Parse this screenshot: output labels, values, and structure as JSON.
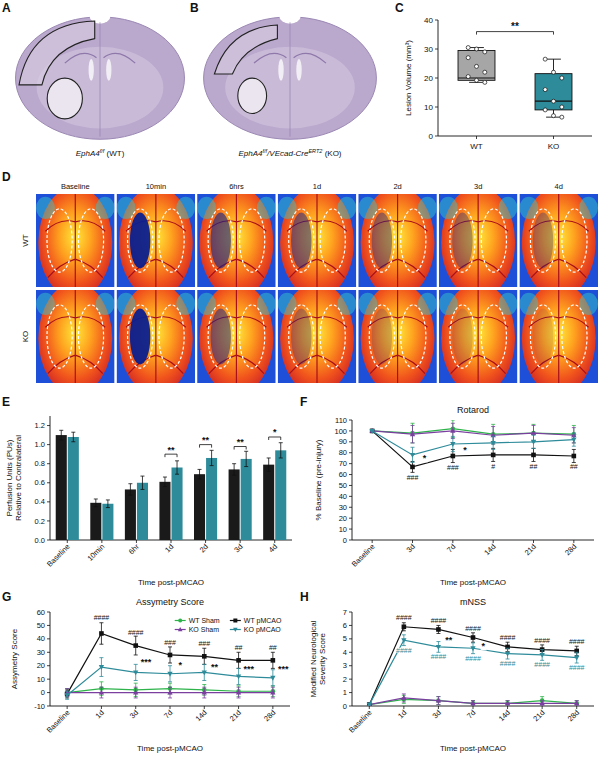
{
  "image_panels": [
    {
      "panel": "A",
      "caption": [
        {
          "text": "EphA4",
          "italic": true
        },
        {
          "text": "f/f",
          "italic": true,
          "sup": true
        },
        {
          "text": " (WT)"
        }
      ]
    },
    {
      "panel": "B",
      "caption": [
        {
          "text": "EphA4",
          "italic": true
        },
        {
          "text": "f/f",
          "italic": true,
          "sup": true
        },
        {
          "text": "/VEcad-Cre",
          "italic": true
        },
        {
          "text": "ERT2",
          "italic": true,
          "sup": true
        },
        {
          "text": " (KO)"
        }
      ]
    },
    {
      "panel": "D",
      "columns": [
        "Baseline",
        "10min",
        "6hrs",
        "1d",
        "2d",
        "3d",
        "4d"
      ],
      "rows": [
        "WT",
        "KO"
      ]
    }
  ],
  "chart_data": [
    {
      "panel": "C",
      "type": "box",
      "y_label": "Lesion Volume (mm³)",
      "categories": [
        "WT",
        "KO"
      ],
      "colors": [
        "#a6a6a6",
        "#2e8b9a"
      ],
      "boxes": [
        {
          "min": 18.5,
          "q1": 19.2,
          "median": 20,
          "q3": 29.5,
          "max": 30.5,
          "points": [
            30.5,
            30,
            29,
            27,
            24,
            22,
            20.5,
            19.2,
            18.5
          ]
        },
        {
          "min": 6.5,
          "q1": 9,
          "median": 12,
          "q3": 21.5,
          "max": 26.5,
          "points": [
            26.5,
            22,
            20,
            16,
            12,
            10,
            9,
            7,
            6.5
          ]
        }
      ],
      "ylim": [
        0,
        40
      ],
      "yticks": [
        0,
        10,
        20,
        30,
        40
      ],
      "annotations": [
        {
          "y": 36,
          "text": "**"
        }
      ]
    },
    {
      "panel": "E",
      "type": "bar",
      "y_label": "Perfusion Units (PUs) Relative to Contralateral",
      "x_label": "Time post-pMCAO",
      "categories": [
        "Baseline",
        "10min",
        "6hr",
        "1d",
        "2d",
        "3d",
        "4d"
      ],
      "series": [
        {
          "color": "#1a1a1a",
          "values": [
            1.1,
            0.39,
            0.53,
            0.61,
            0.69,
            0.74,
            0.79
          ],
          "errors": [
            0.05,
            0.04,
            0.06,
            0.05,
            0.05,
            0.06,
            0.07
          ]
        },
        {
          "color": "#2e8b9a",
          "values": [
            1.08,
            0.38,
            0.6,
            0.76,
            0.86,
            0.85,
            0.94
          ],
          "errors": [
            0.05,
            0.04,
            0.07,
            0.07,
            0.08,
            0.08,
            0.08
          ]
        }
      ],
      "ylim": [
        0,
        1.3
      ],
      "yticks": [
        {
          "value": 0,
          "label": "0.0"
        },
        0.2,
        0.4,
        0.6,
        0.8,
        {
          "value": 1,
          "label": "1.0"
        },
        1.2
      ],
      "annotations": [
        {
          "at": "1d",
          "y": 0.9,
          "text": "**"
        },
        {
          "at": "2d",
          "y": 1.0,
          "text": "**"
        },
        {
          "at": "3d",
          "y": 0.98,
          "text": "**"
        },
        {
          "at": "4d",
          "y": 1.08,
          "text": "*"
        }
      ]
    },
    {
      "panel": "F",
      "type": "line",
      "title": "Rotarod",
      "y_label": "% Baseline (pre-injury)",
      "x_label": "Time post-pMCAO",
      "categories": [
        "Baseline",
        "3d",
        "7d",
        "14d",
        "21d",
        "28d"
      ],
      "series": [
        {
          "color": "#2db34a",
          "marker": "circle",
          "values": [
            100,
            98,
            102,
            97,
            98,
            97
          ],
          "errors": [
            0,
            9,
            8,
            9,
            8,
            8
          ]
        },
        {
          "color": "#111111",
          "marker": "square",
          "values": [
            100,
            67,
            77,
            78,
            78,
            77
          ],
          "errors": [
            0,
            5,
            6,
            6,
            6,
            6
          ]
        },
        {
          "color": "#7b3fa0",
          "marker": "triangle",
          "values": [
            100,
            97,
            100,
            96,
            98,
            96
          ],
          "errors": [
            0,
            8,
            7,
            8,
            7,
            7
          ]
        },
        {
          "color": "#2e8b9a",
          "marker": "triangle-down",
          "values": [
            100,
            78,
            88,
            89,
            90,
            92
          ],
          "errors": [
            0,
            7,
            7,
            6,
            6,
            6
          ]
        }
      ],
      "ylim": [
        0,
        110
      ],
      "yticks": [
        0,
        10,
        20,
        30,
        40,
        50,
        60,
        70,
        80,
        90,
        100,
        110
      ],
      "annotations": [
        {
          "at": "3d",
          "y": 75,
          "text": "*"
        },
        {
          "at": "7d",
          "y": 82.5,
          "text": "*"
        },
        {
          "at": "3d",
          "y": 57,
          "text": "###",
          "color": "#111111"
        },
        {
          "at": "7d",
          "y": 66,
          "text": "###",
          "color": "#111111"
        },
        {
          "at": "14d",
          "y": 67,
          "text": "#",
          "color": "#111111"
        },
        {
          "at": "21d",
          "y": 67,
          "text": "##",
          "color": "#111111"
        },
        {
          "at": "28d",
          "y": 67,
          "text": "##",
          "color": "#111111"
        }
      ]
    },
    {
      "panel": "G",
      "type": "line",
      "title": "Assymetry Score",
      "y_label": "Assymetry Score",
      "x_label": "Time post-pMCAO",
      "legend": "upper right",
      "categories": [
        "Baseline",
        "1d",
        "3d",
        "7d",
        "14d",
        "21d",
        "28d"
      ],
      "series": [
        {
          "name": "WT Sham",
          "color": "#2db34a",
          "marker": "circle",
          "values": [
            0,
            3,
            2,
            3,
            2,
            1,
            1
          ],
          "errors": [
            3,
            5,
            5,
            4,
            4,
            4,
            4
          ]
        },
        {
          "name": "WT pMCAO",
          "color": "#111111",
          "marker": "square",
          "values": [
            -1,
            44,
            35,
            28,
            27,
            24,
            24
          ],
          "errors": [
            3,
            8,
            7,
            6,
            6,
            6,
            6
          ]
        },
        {
          "name": "KO Sham",
          "color": "#7b3fa0",
          "marker": "triangle",
          "values": [
            0,
            0,
            0,
            0,
            0,
            0,
            0
          ],
          "errors": [
            3,
            4,
            4,
            4,
            4,
            4,
            4
          ]
        },
        {
          "name": "KO pMCAO",
          "color": "#2e8b9a",
          "marker": "triangle-down",
          "values": [
            -2,
            19,
            15,
            14,
            15,
            12,
            11
          ],
          "errors": [
            3,
            7,
            6,
            6,
            6,
            6,
            6
          ]
        }
      ],
      "ylim": [
        -10,
        60
      ],
      "yticks": [
        -10,
        0,
        10,
        20,
        30,
        40,
        50,
        60
      ],
      "annotations": [
        {
          "at": "3d",
          "y": 23,
          "text": "***"
        },
        {
          "at": "7d",
          "y": 21,
          "text": "*"
        },
        {
          "at": "14d",
          "y": 19.5,
          "text": "**"
        },
        {
          "at": "21d",
          "y": 18,
          "text": "***"
        },
        {
          "at": "28d",
          "y": 17.5,
          "text": "***"
        },
        {
          "at": "1d",
          "y": 55.5,
          "text": "####",
          "color": "#111111"
        },
        {
          "at": "3d",
          "y": 45,
          "text": "####",
          "color": "#111111"
        },
        {
          "at": "7d",
          "y": 37.5,
          "text": "###",
          "color": "#111111"
        },
        {
          "at": "14d",
          "y": 36.5,
          "text": "###",
          "color": "#111111"
        },
        {
          "at": "21d",
          "y": 33.5,
          "text": "##",
          "color": "#111111"
        },
        {
          "at": "28d",
          "y": 33.5,
          "text": "##",
          "color": "#111111"
        }
      ]
    },
    {
      "panel": "H",
      "type": "line",
      "title": "mNSS",
      "y_label": "Modified Neurological Severity Score",
      "x_label": "Time post-pMCAO",
      "categories": [
        "Baseline",
        "1d",
        "3d",
        "7d",
        "14d",
        "21d",
        "28d"
      ],
      "series": [
        {
          "color": "#2db34a",
          "marker": "circle",
          "values": [
            0.1,
            0.5,
            0.4,
            0.2,
            0.2,
            0.4,
            0.2
          ],
          "errors": [
            0.1,
            0.3,
            0.3,
            0.2,
            0.2,
            0.3,
            0.2
          ]
        },
        {
          "color": "#111111",
          "marker": "square",
          "values": [
            0.1,
            5.9,
            5.7,
            5.1,
            4.4,
            4.2,
            4.1
          ],
          "errors": [
            0.1,
            0.3,
            0.3,
            0.35,
            0.35,
            0.35,
            0.35
          ]
        },
        {
          "color": "#7b3fa0",
          "marker": "triangle",
          "values": [
            0.1,
            0.6,
            0.4,
            0.2,
            0.2,
            0.2,
            0.2
          ],
          "errors": [
            0.1,
            0.3,
            0.3,
            0.2,
            0.2,
            0.2,
            0.2
          ]
        },
        {
          "color": "#2e8b9a",
          "marker": "triangle-down",
          "values": [
            0.1,
            4.9,
            4.4,
            4.3,
            3.9,
            3.8,
            3.6
          ],
          "errors": [
            0.1,
            0.4,
            0.4,
            0.4,
            0.4,
            0.4,
            0.4
          ]
        }
      ],
      "ylim": [
        0,
        7
      ],
      "yticks": [
        0,
        1,
        2,
        3,
        4,
        5,
        6,
        7
      ],
      "annotations": [
        {
          "at": "3d",
          "y": 4.9,
          "text": "**"
        },
        {
          "at": "7d",
          "y": 4.45,
          "text": "*"
        },
        {
          "at": "1d",
          "y": 6.6,
          "text": "####",
          "color": "#111111"
        },
        {
          "at": "3d",
          "y": 6.4,
          "text": "####",
          "color": "#111111"
        },
        {
          "at": "7d",
          "y": 5.8,
          "text": "####",
          "color": "#111111"
        },
        {
          "at": "14d",
          "y": 5.1,
          "text": "####",
          "color": "#111111"
        },
        {
          "at": "21d",
          "y": 4.9,
          "text": "####",
          "color": "#111111"
        },
        {
          "at": "28d",
          "y": 4.8,
          "text": "####",
          "color": "#111111"
        },
        {
          "at": "1d",
          "y": 4.15,
          "text": "####",
          "color": "#2e8b9a"
        },
        {
          "at": "3d",
          "y": 3.65,
          "text": "####",
          "color": "#2e8b9a"
        },
        {
          "at": "7d",
          "y": 3.55,
          "text": "####",
          "color": "#2e8b9a"
        },
        {
          "at": "14d",
          "y": 3.15,
          "text": "####",
          "color": "#2e8b9a"
        },
        {
          "at": "21d",
          "y": 3.05,
          "text": "####",
          "color": "#2e8b9a"
        },
        {
          "at": "28d",
          "y": 2.85,
          "text": "####",
          "color": "#2e8b9a"
        }
      ]
    }
  ]
}
